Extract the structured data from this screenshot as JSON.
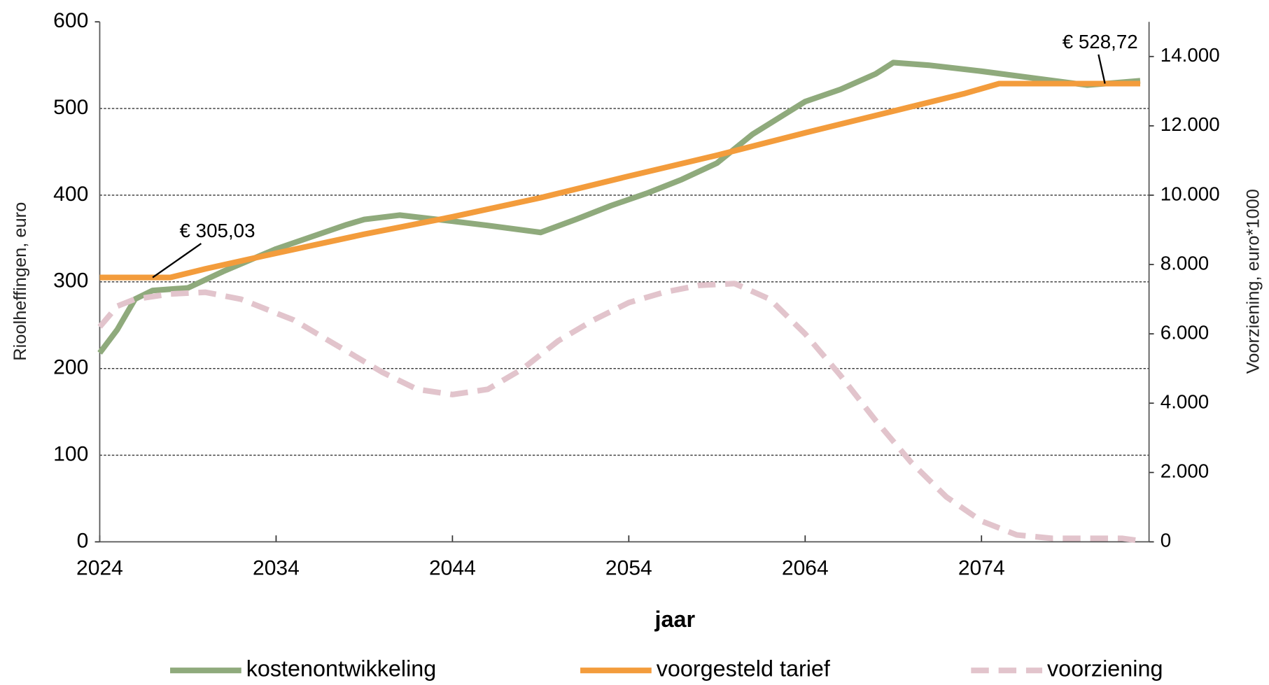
{
  "chart_data": {
    "type": "line",
    "xlabel": "jaar",
    "ylabel": "Rioolheffingen, euro",
    "y2label": "Voorziening, euro*1000",
    "xlim": [
      2024,
      2083.5
    ],
    "xticks": [
      2024,
      2034,
      2044,
      2054,
      2064,
      2074
    ],
    "ylim": [
      0,
      600
    ],
    "yticks": [
      0,
      100,
      200,
      300,
      400,
      500,
      600
    ],
    "y2lim": [
      0,
      15000
    ],
    "y2ticks": [
      0,
      {
        "value": 2000,
        "label": "2.000"
      },
      {
        "value": 4000,
        "label": "4.000"
      },
      {
        "value": 6000,
        "label": "6.000"
      },
      {
        "value": 8000,
        "label": "8.000"
      },
      {
        "value": 10000,
        "label": "10.000"
      },
      {
        "value": 12000,
        "label": "12.000"
      },
      {
        "value": 14000,
        "label": "14.000"
      }
    ],
    "grid": true,
    "legend": "bottom",
    "series": [
      {
        "name": "kostenontwikkeling",
        "color": "#8faa7c",
        "dash": false,
        "x": [
          2024,
          2025,
          2026,
          2027,
          2029,
          2031,
          2034,
          2036,
          2038,
          2039,
          2041,
          2044,
          2046,
          2049,
          2051,
          2053,
          2055,
          2057,
          2059,
          2061,
          2064,
          2066,
          2068,
          2069,
          2071,
          2074,
          2077,
          2080,
          2083
        ],
        "values": [
          218,
          245,
          280,
          290,
          293,
          312,
          338,
          352,
          366,
          372,
          377,
          370,
          365,
          357,
          372,
          388,
          402,
          418,
          437,
          470,
          508,
          522,
          540,
          553,
          550,
          543,
          535,
          527,
          532
        ]
      },
      {
        "name": "voorgesteld tarief",
        "color": "#f39c3c",
        "dash": false,
        "x": [
          2024,
          2028,
          2030,
          2034,
          2039,
          2044,
          2049,
          2054,
          2059,
          2064,
          2069,
          2073,
          2075,
          2083
        ],
        "values": [
          305.03,
          305.03,
          315,
          333,
          355,
          375,
          397,
          422,
          446,
          472,
          497,
          517,
          528.72,
          528.72
        ]
      },
      {
        "name": "voorziening",
        "color": "#e2c4cc",
        "dash": true,
        "axis": "y2",
        "x": [
          2024,
          2025,
          2026,
          2028,
          2030,
          2032,
          2035,
          2038,
          2040,
          2042,
          2044,
          2046,
          2048,
          2050,
          2052,
          2054,
          2056,
          2058,
          2060,
          2062,
          2064,
          2066,
          2068,
          2070,
          2072,
          2074,
          2076,
          2078,
          2080,
          2082,
          2083
        ],
        "values": [
          6200,
          6800,
          7000,
          7150,
          7200,
          7000,
          6400,
          5500,
          4900,
          4400,
          4250,
          4400,
          5000,
          5800,
          6400,
          6900,
          7200,
          7400,
          7450,
          7000,
          6000,
          4800,
          3500,
          2300,
          1300,
          600,
          200,
          100,
          100,
          100,
          30
        ]
      }
    ],
    "annotations": [
      {
        "text": "€ 305,03",
        "x": 2027,
        "y": 305.03
      },
      {
        "text": "€ 528,72",
        "x": 2081,
        "y": 528.72
      }
    ]
  }
}
